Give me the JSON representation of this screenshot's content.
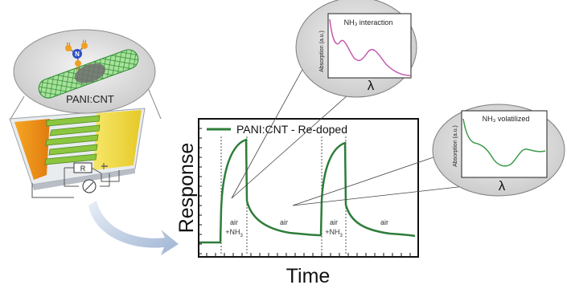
{
  "device": {
    "bubble_label": "PANI:CNT",
    "molecule": {
      "center": "N",
      "hydrogen": "H"
    },
    "resistor_label": "R"
  },
  "main_chart": {
    "legend": "PANI:CNT - Re-doped",
    "ylabel": "Response",
    "xlabel": "Time",
    "regions": [
      {
        "top": "air",
        "bottom": "+NH",
        "sub": "3"
      },
      {
        "top": "air",
        "bottom": ""
      },
      {
        "top": "air",
        "bottom": "+NH",
        "sub": "3"
      },
      {
        "top": "air",
        "bottom": ""
      }
    ],
    "colors": {
      "curve": "#2e7d3a",
      "frame": "#111111"
    }
  },
  "inset_top": {
    "title": "NH₃ interaction",
    "ylabel": "Absorption (a.u.)",
    "xlabel": "λ",
    "curve_color": "#c45bb0"
  },
  "inset_right": {
    "title": "NH₃ volatilized",
    "ylabel": "Absorption (a.u.)",
    "xlabel": "λ",
    "curve_color": "#3f9a4a"
  }
}
